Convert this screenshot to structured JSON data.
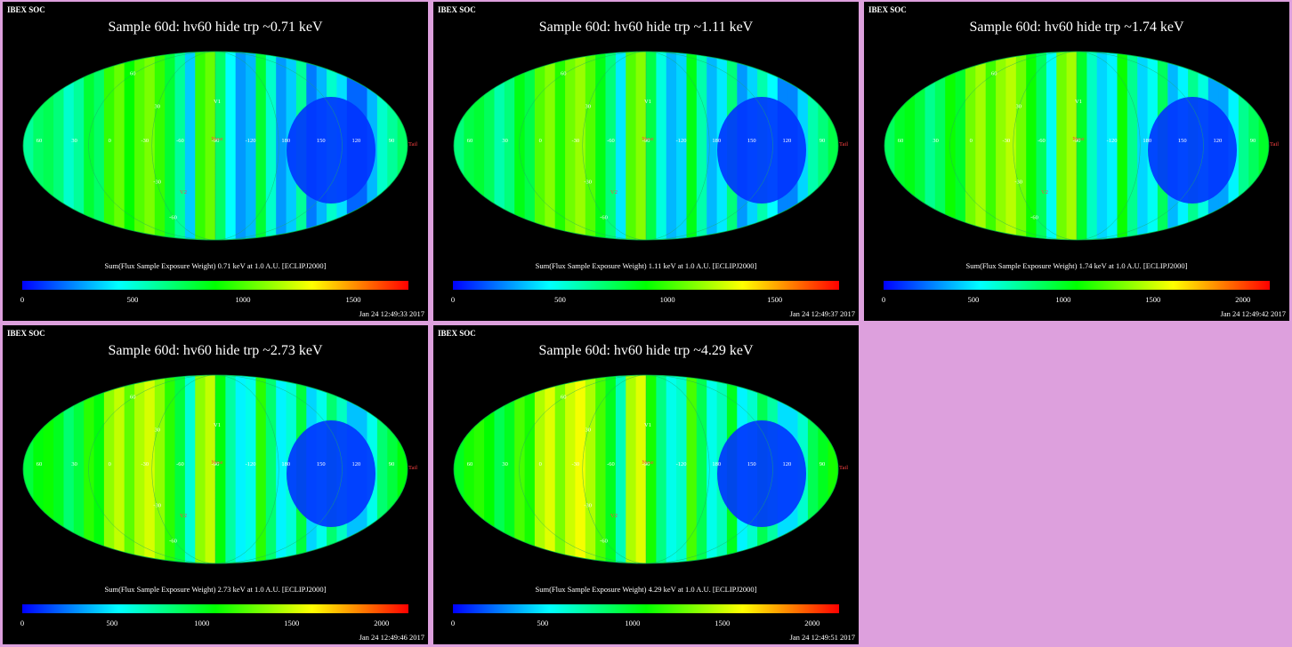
{
  "panels": [
    {
      "soc": "IBEX SOC",
      "title": "Sample 60d: hv60 hide trp ~0.71 keV",
      "colorbar_label": "Sum(Flux Sample Exposure Weight)  0.71 keV at 1.0 A.U. [ECLIPJ2000]",
      "ticks": [
        "0",
        "500",
        "1000",
        "1500"
      ],
      "tick_values": [
        0,
        500,
        1000,
        1500
      ],
      "range": [
        0,
        1750
      ],
      "timestamp": "Jan 24 12:49:33 2017"
    },
    {
      "soc": "IBEX SOC",
      "title": "Sample 60d: hv60 hide trp ~1.11 keV",
      "colorbar_label": "Sum(Flux Sample Exposure Weight)  1.11 keV at 1.0 A.U. [ECLIPJ2000]",
      "ticks": [
        "0",
        "500",
        "1000",
        "1500"
      ],
      "tick_values": [
        0,
        500,
        1000,
        1500
      ],
      "range": [
        0,
        1800
      ],
      "timestamp": "Jan 24 12:49:37 2017"
    },
    {
      "soc": "IBEX SOC",
      "title": "Sample 60d: hv60 hide trp ~1.74 keV",
      "colorbar_label": "Sum(Flux Sample Exposure Weight)  1.74 keV at 1.0 A.U. [ECLIPJ2000]",
      "ticks": [
        "0",
        "500",
        "1000",
        "1500",
        "2000"
      ],
      "tick_values": [
        0,
        500,
        1000,
        1500,
        2000
      ],
      "range": [
        0,
        2150
      ],
      "timestamp": "Jan 24 12:49:42 2017"
    },
    {
      "soc": "IBEX SOC",
      "title": "Sample 60d: hv60 hide trp ~2.73 keV",
      "colorbar_label": "Sum(Flux Sample Exposure Weight)  2.73 keV at 1.0 A.U. [ECLIPJ2000]",
      "ticks": [
        "0",
        "500",
        "1000",
        "1500",
        "2000"
      ],
      "tick_values": [
        0,
        500,
        1000,
        1500,
        2000
      ],
      "range": [
        0,
        2150
      ],
      "timestamp": "Jan 24 12:49:46 2017"
    },
    {
      "soc": "IBEX SOC",
      "title": "Sample 60d: hv60 hide trp ~4.29 keV",
      "colorbar_label": "Sum(Flux Sample Exposure Weight)  4.29 keV at 1.0 A.U. [ECLIPJ2000]",
      "ticks": [
        "0",
        "500",
        "1000",
        "1500",
        "2000"
      ],
      "tick_values": [
        0,
        500,
        1000,
        1500,
        2000
      ],
      "range": [
        0,
        2150
      ],
      "timestamp": "Jan 24 12:49:51 2017"
    }
  ],
  "map_labels": {
    "lon": [
      "60",
      "30",
      "0",
      "-30",
      "-60",
      "-90",
      "-120",
      "180",
      "150",
      "120",
      "90"
    ],
    "lat": [
      "60",
      "30",
      "-30",
      "-60"
    ],
    "markers": {
      "v1": "V1",
      "v2": "V2",
      "nose": "Nose",
      "tail": "Tail"
    }
  },
  "colors": {
    "background": "#000000",
    "page": "#dda0dd",
    "colormap": [
      "#0000ff",
      "#00ffff",
      "#00ff00",
      "#ffff00",
      "#ff0000"
    ]
  }
}
